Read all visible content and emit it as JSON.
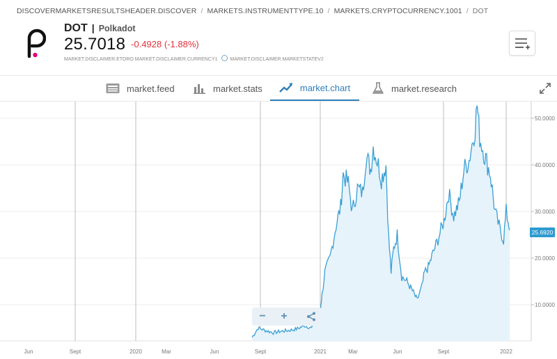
{
  "breadcrumb": {
    "items": [
      "DISCOVERMARKETSRESULTSHEADER.DISCOVER",
      "MARKETS.INSTRUMENTTYPE.10",
      "MARKETS.CRYPTOCURRENCY.1001",
      "DOT"
    ],
    "separator": "/"
  },
  "instrument": {
    "symbol": "DOT",
    "pipe": "|",
    "name": "Polkadot",
    "price": "25.7018",
    "change": "-0.4928 (-1.88%)",
    "disclaimer_left": "MARKET.DISCLAIMER.ETORO MARKET.DISCLAIMER.CURRENCY1",
    "disclaimer_right": "MARKET.DISCLAIMER.MARKETSTATEV2"
  },
  "tabs": [
    {
      "label": "market.feed",
      "icon": "feed-icon"
    },
    {
      "label": "market.stats",
      "icon": "stats-icon"
    },
    {
      "label": "market.chart",
      "icon": "chart-icon",
      "active": true
    },
    {
      "label": "market.research",
      "icon": "research-icon"
    }
  ],
  "colors": {
    "accent": "#2e7fb8",
    "line": "#3a9fd4",
    "fill": "#e6f3fa",
    "negative": "#e0303c",
    "logo_accent": "#e6007a"
  },
  "chart_data": {
    "type": "area",
    "x_ticks": [
      "Jun",
      "Sept",
      "2020",
      "Mar",
      "Jun",
      "Sept",
      "2021",
      "Mar",
      "Jun",
      "Sept",
      "2022"
    ],
    "y_ticks": [
      "10.0000",
      "20.0000",
      "30.0000",
      "40.0000",
      "50.0000"
    ],
    "ylim": [
      0,
      53
    ],
    "current_value_label": "25.6920",
    "series": [
      {
        "x": [
          "2020-08-20",
          "2020-09-01",
          "2020-09-15",
          "2020-10-01",
          "2020-10-15",
          "2020-11-01",
          "2020-11-15",
          "2020-12-01",
          "2020-12-15",
          "2021-01-01",
          "2021-01-10",
          "2021-01-20",
          "2021-02-01",
          "2021-02-10",
          "2021-02-15",
          "2021-02-25",
          "2021-03-05",
          "2021-03-15",
          "2021-03-25",
          "2021-04-01",
          "2021-04-10",
          "2021-04-15",
          "2021-04-25",
          "2021-05-01",
          "2021-05-10",
          "2021-05-15",
          "2021-05-20",
          "2021-05-25",
          "2021-06-01",
          "2021-06-10",
          "2021-06-20",
          "2021-07-01",
          "2021-07-10",
          "2021-07-20",
          "2021-07-25",
          "2021-08-01",
          "2021-08-10",
          "2021-08-20",
          "2021-09-01",
          "2021-09-10",
          "2021-09-20",
          "2021-10-01",
          "2021-10-10",
          "2021-10-20",
          "2021-11-01",
          "2021-11-05",
          "2021-11-10",
          "2021-11-20",
          "2021-12-01",
          "2021-12-10",
          "2021-12-20",
          "2021-12-27",
          "2022-01-01",
          "2022-01-05",
          "2022-01-08"
        ],
        "y": [
          3,
          5,
          4.5,
          4,
          4.3,
          4.5,
          4.8,
          5.5,
          5,
          9,
          17,
          20,
          27,
          31,
          38,
          36,
          30,
          35,
          34,
          42,
          39,
          44,
          40,
          37,
          40,
          25,
          17,
          22,
          25,
          16,
          15,
          13,
          11,
          14,
          17,
          18,
          21,
          24,
          28,
          34,
          29,
          32,
          39,
          41,
          48,
          53,
          46,
          42,
          38,
          30,
          26,
          24,
          30,
          28,
          26
        ]
      }
    ]
  }
}
